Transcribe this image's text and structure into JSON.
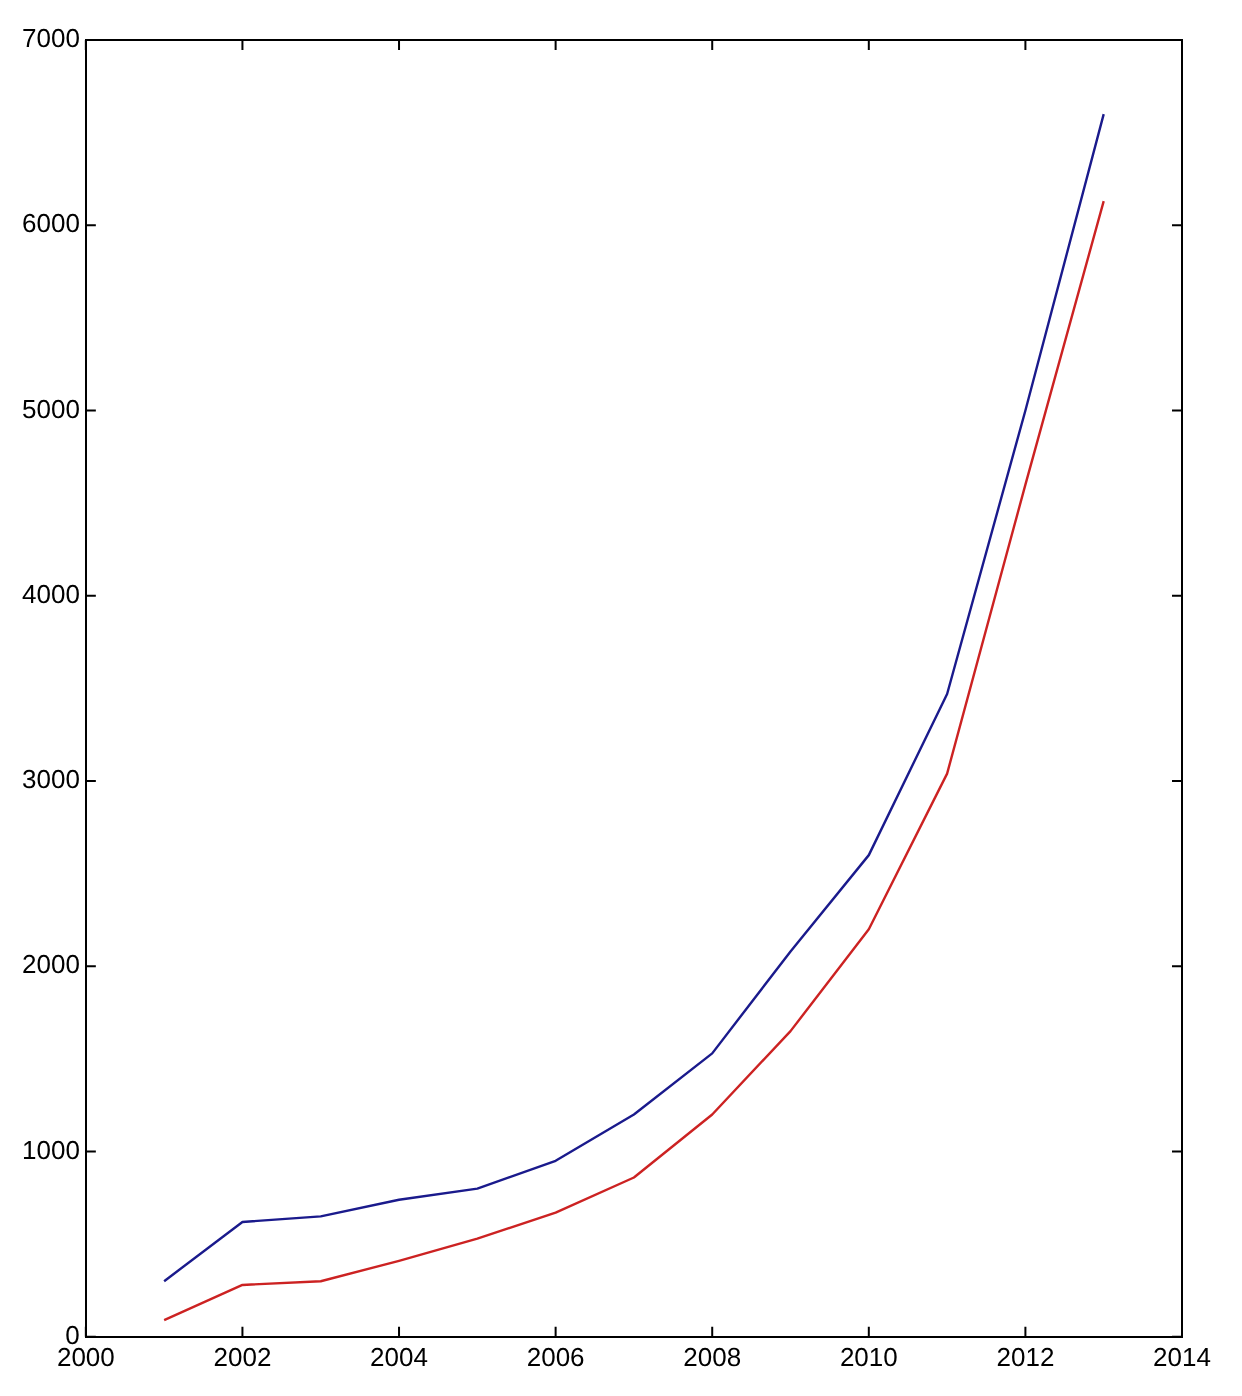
{
  "chart_data": {
    "type": "line",
    "x": [
      2001,
      2002,
      2003,
      2004,
      2005,
      2006,
      2007,
      2008,
      2009,
      2010,
      2011,
      2012,
      2013
    ],
    "series": [
      {
        "color": "#1a1a8c",
        "values": [
          300,
          620,
          650,
          740,
          800,
          950,
          1200,
          1530,
          2080,
          2600,
          3470,
          5000,
          6600
        ]
      },
      {
        "color": "#cc2222",
        "values": [
          90,
          280,
          300,
          410,
          530,
          670,
          860,
          1200,
          1650,
          2200,
          3040,
          4600,
          6130
        ]
      }
    ],
    "xlim": [
      2000,
      2014
    ],
    "xticks": [
      2000,
      2002,
      2004,
      2006,
      2008,
      2010,
      2012,
      2014
    ],
    "ylim": [
      0,
      7000
    ],
    "yticks": [
      0,
      1000,
      2000,
      3000,
      4000,
      5000,
      6000,
      7000
    ],
    "grid": false,
    "legend": false,
    "marker": "none",
    "line_style": "solid"
  }
}
